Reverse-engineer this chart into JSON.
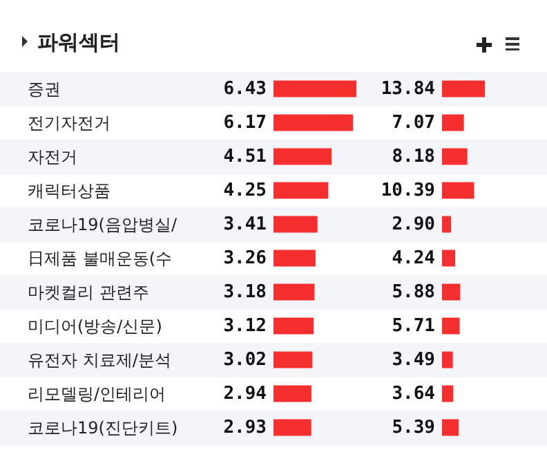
{
  "chart_data": [
    {
      "type": "bar",
      "orientation": "horizontal",
      "title": "파워섹터",
      "categories": [
        "증권",
        "전기자전거",
        "자전거",
        "캐릭터상품",
        "코로나19(음압병실/",
        "日제품 불매운동(수",
        "마켓컬리 관련주",
        "미디어(방송/신문)",
        "유전자 치료제/분석",
        "리모델링/인테리어",
        "코로나19(진단키트)"
      ],
      "series": [
        {
          "color": "#f52e2e",
          "values": [
            6.43,
            6.17,
            4.51,
            4.25,
            3.41,
            3.26,
            3.18,
            3.12,
            3.02,
            2.94,
            2.93
          ],
          "value_labels": [
            "6.43",
            "6.17",
            "4.51",
            "4.25",
            "3.41",
            "3.26",
            "3.18",
            "3.12",
            "3.02",
            "2.94",
            "2.93"
          ]
        }
      ]
    },
    {
      "type": "bar",
      "orientation": "horizontal",
      "categories": [
        null,
        null,
        null,
        null,
        null,
        null,
        null,
        null,
        null,
        null,
        null
      ],
      "series": [
        {
          "color": "#f52e2e",
          "values": [
            13.84,
            7.07,
            8.18,
            10.39,
            2.9,
            4.24,
            5.88,
            5.71,
            3.49,
            3.64,
            5.39
          ],
          "value_labels": [
            "13.84",
            "7.07",
            "8.18",
            "10.39",
            "2.90",
            "4.24",
            "5.88",
            "5.71",
            "3.49",
            "3.64",
            "5.39"
          ]
        }
      ]
    }
  ]
}
